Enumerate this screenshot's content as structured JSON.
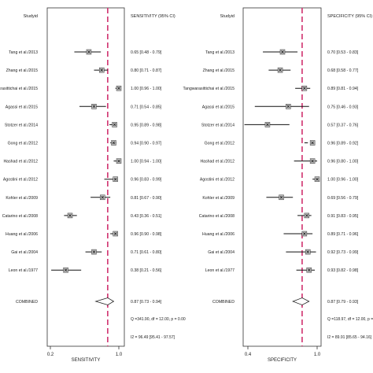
{
  "chart_data": [
    {
      "type": "forest",
      "header_study": "Studyid",
      "header_estimate": "SENSITIVITY (95% CI)",
      "xlabel": "SENSITIVITY",
      "xticks": [
        "0.2",
        "1.0"
      ],
      "xlim": [
        0.2,
        1.0
      ],
      "reference_line": 0.87,
      "studies": [
        {
          "name": "Tang et al./2013",
          "est": 0.65,
          "lo": 0.48,
          "hi": 0.79,
          "label": "0.65 [0.48 - 0.79]"
        },
        {
          "name": "Zhang et al./2015",
          "est": 0.8,
          "lo": 0.71,
          "hi": 0.87,
          "label": "0.80 [0.71 - 0.87]"
        },
        {
          "name": "Tangwarasittichai et al./2015",
          "est": 1.0,
          "lo": 0.96,
          "hi": 1.0,
          "label": "1.00 [0.96 - 1.00]"
        },
        {
          "name": "Agassi et al./2015",
          "est": 0.71,
          "lo": 0.54,
          "hi": 0.85,
          "label": "0.71 [0.54 - 0.85]"
        },
        {
          "name": "Stotzer et al./2014",
          "est": 0.95,
          "lo": 0.89,
          "hi": 0.98,
          "label": "0.95 [0.89 - 0.98]"
        },
        {
          "name": "Gong et al./2012",
          "est": 0.94,
          "lo": 0.9,
          "hi": 0.97,
          "label": "0.94 [0.90 - 0.97]"
        },
        {
          "name": "Hashad et al./2012",
          "est": 1.0,
          "lo": 0.94,
          "hi": 1.0,
          "label": "1.00 [0.94 - 1.00]"
        },
        {
          "name": "Agostini et al./2012",
          "est": 0.96,
          "lo": 0.83,
          "hi": 0.99,
          "label": "0.96 [0.83 - 0.99]"
        },
        {
          "name": "Kohler et al./2009",
          "est": 0.81,
          "lo": 0.67,
          "hi": 0.9,
          "label": "0.81 [0.67 - 0.90]"
        },
        {
          "name": "Catarino et al./2008",
          "est": 0.43,
          "lo": 0.36,
          "hi": 0.51,
          "label": "0.43 [0.36 - 0.51]"
        },
        {
          "name": "Huang et al./2006",
          "est": 0.96,
          "lo": 0.9,
          "hi": 0.98,
          "label": "0.96 [0.90 - 0.98]"
        },
        {
          "name": "Gai et al./2004",
          "est": 0.71,
          "lo": 0.61,
          "hi": 0.8,
          "label": "0.71 [0.61 - 0.80]"
        },
        {
          "name": "Leon et al./1977",
          "est": 0.38,
          "lo": 0.21,
          "hi": 0.56,
          "label": "0.38 [0.21 - 0.56]"
        }
      ],
      "combined": {
        "name": "COMBINED",
        "est": 0.87,
        "lo": 0.73,
        "hi": 0.94,
        "label": "0.87 [0.73 - 0.94]"
      },
      "stat_q": "Q =341.90, df = 12.00, p = 0.00",
      "stat_i2": "I2 = 96.49 [95.41 - 97.57]"
    },
    {
      "type": "forest",
      "header_study": "Studyid",
      "header_estimate": "SPECIFICITY (95% CI)",
      "xlabel": "SPECIFICITY",
      "xticks": [
        "0.4",
        "1.0"
      ],
      "xlim": [
        0.4,
        1.0
      ],
      "reference_line": 0.87,
      "studies": [
        {
          "name": "Tang et al./2013",
          "est": 0.7,
          "lo": 0.53,
          "hi": 0.83,
          "label": "0.70 [0.53 - 0.83]"
        },
        {
          "name": "Zhang et al./2015",
          "est": 0.68,
          "lo": 0.58,
          "hi": 0.77,
          "label": "0.68 [0.58 - 0.77]"
        },
        {
          "name": "Tangwarasittichai et al./2015",
          "est": 0.89,
          "lo": 0.81,
          "hi": 0.94,
          "label": "0.89 [0.81 - 0.94]"
        },
        {
          "name": "Agassi et al./2015",
          "est": 0.75,
          "lo": 0.46,
          "hi": 0.93,
          "label": "0.75 [0.46 - 0.93]"
        },
        {
          "name": "Stotzer et al./2014",
          "est": 0.57,
          "lo": 0.37,
          "hi": 0.76,
          "label": "0.57 [0.37 - 0.76]"
        },
        {
          "name": "Gong et al./2012",
          "est": 0.96,
          "lo": 0.89,
          "hi": 0.92,
          "label": "0.96 [0.89 - 0.92]"
        },
        {
          "name": "Hashad et al./2012",
          "est": 0.96,
          "lo": 0.8,
          "hi": 1.0,
          "label": "0.96 [0.80 - 1.00]"
        },
        {
          "name": "Agostini et al./2012",
          "est": 1.0,
          "lo": 0.96,
          "hi": 1.0,
          "label": "1.00 [0.96 - 1.00]"
        },
        {
          "name": "Kohler et al./2009",
          "est": 0.69,
          "lo": 0.56,
          "hi": 0.79,
          "label": "0.69 [0.56 - 0.79]"
        },
        {
          "name": "Catarino et al./2008",
          "est": 0.91,
          "lo": 0.83,
          "hi": 0.95,
          "label": "0.91 [0.83 - 0.95]"
        },
        {
          "name": "Huang et al./2006",
          "est": 0.89,
          "lo": 0.71,
          "hi": 0.96,
          "label": "0.89 [0.71 - 0.96]"
        },
        {
          "name": "Gai et al./2004",
          "est": 0.92,
          "lo": 0.73,
          "hi": 0.99,
          "label": "0.92 [0.73 - 0.99]"
        },
        {
          "name": "Leon et al./1977",
          "est": 0.93,
          "lo": 0.82,
          "hi": 0.98,
          "label": "0.93 [0.82 - 0.98]"
        }
      ],
      "combined": {
        "name": "COMBINED",
        "est": 0.87,
        "lo": 0.79,
        "hi": 0.93,
        "label": "0.87 [0.79 - 0.93]"
      },
      "stat_q": "Q =118.97, df = 12.00, p = 0.00",
      "stat_i2": "I2 = 89.91 [85.65 - 94.16]"
    }
  ]
}
